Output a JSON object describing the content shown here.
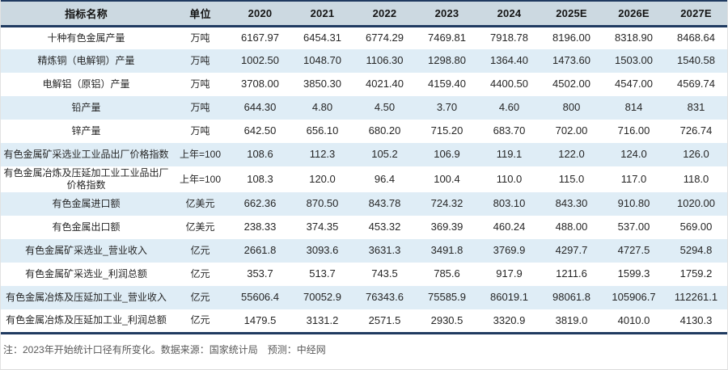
{
  "chart_data": {
    "type": "table",
    "columns": [
      "指标名称",
      "单位",
      "2020",
      "2021",
      "2022",
      "2023",
      "2024",
      "2025E",
      "2026E",
      "2027E"
    ],
    "rows": [
      {
        "name": "十种有色金属产量",
        "unit": "万吨",
        "values": [
          "6167.97",
          "6454.31",
          "6774.29",
          "7469.81",
          "7918.78",
          "8196.00",
          "8318.90",
          "8468.64"
        ]
      },
      {
        "name": "精炼铜（电解铜）产量",
        "unit": "万吨",
        "values": [
          "1002.50",
          "1048.70",
          "1106.30",
          "1298.80",
          "1364.40",
          "1473.60",
          "1503.00",
          "1540.58"
        ]
      },
      {
        "name": "电解铝（原铝）产量",
        "unit": "万吨",
        "values": [
          "3708.00",
          "3850.30",
          "4021.40",
          "4159.40",
          "4400.50",
          "4502.00",
          "4547.00",
          "4569.74"
        ]
      },
      {
        "name": "铅产量",
        "unit": "万吨",
        "values": [
          "644.30",
          "4.80",
          "4.50",
          "3.70",
          "4.60",
          "800",
          "814",
          "831"
        ]
      },
      {
        "name": "锌产量",
        "unit": "万吨",
        "values": [
          "642.50",
          "656.10",
          "680.20",
          "715.20",
          "683.70",
          "702.00",
          "716.00",
          "726.74"
        ]
      },
      {
        "name": "有色金属矿采选业工业品出厂价格指数",
        "unit": "上年=100",
        "values": [
          "108.6",
          "112.3",
          "105.2",
          "106.9",
          "119.1",
          "122.0",
          "124.0",
          "126.0"
        ]
      },
      {
        "name": "有色金属冶炼及压延加工业工业品出厂价格指数",
        "unit": "上年=100",
        "values": [
          "108.3",
          "120.0",
          "96.4",
          "100.4",
          "110.0",
          "115.0",
          "117.0",
          "118.0"
        ]
      },
      {
        "name": "有色金属进口额",
        "unit": "亿美元",
        "values": [
          "662.36",
          "870.50",
          "843.78",
          "724.32",
          "803.10",
          "843.30",
          "910.80",
          "1020.00"
        ]
      },
      {
        "name": "有色金属出口额",
        "unit": "亿美元",
        "values": [
          "238.33",
          "374.35",
          "453.32",
          "369.39",
          "460.24",
          "488.00",
          "537.00",
          "569.00"
        ]
      },
      {
        "name": "有色金属矿采选业_营业收入",
        "unit": "亿元",
        "values": [
          "2661.8",
          "3093.6",
          "3631.3",
          "3491.8",
          "3769.9",
          "4297.7",
          "4727.5",
          "5294.8"
        ]
      },
      {
        "name": "有色金属矿采选业_利润总额",
        "unit": "亿元",
        "values": [
          "353.7",
          "513.7",
          "743.5",
          "785.6",
          "917.9",
          "1211.6",
          "1599.3",
          "1759.2"
        ]
      },
      {
        "name": "有色金属冶炼及压延加工业_营业收入",
        "unit": "亿元",
        "values": [
          "55606.4",
          "70052.9",
          "76343.6",
          "75585.9",
          "86019.1",
          "98061.8",
          "105906.7",
          "112261.1"
        ]
      },
      {
        "name": "有色金属冶炼及压延加工业_利润总额",
        "unit": "亿元",
        "values": [
          "1479.5",
          "3131.2",
          "2571.5",
          "2930.5",
          "3320.9",
          "3819.0",
          "4010.0",
          "4130.3"
        ]
      }
    ],
    "footnote": "注：2023年开始统计口径有所变化。数据来源：国家统计局　预测：中经网",
    "colors": {
      "border_navy": "#1f3a60",
      "header_bg": "#ccd9e1",
      "alt_row_bg": "#dfedf6",
      "body_text": "#262626",
      "footnote_text": "#595959"
    }
  }
}
